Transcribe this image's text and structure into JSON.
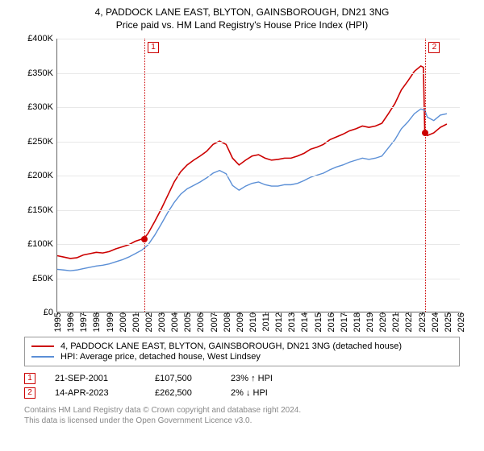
{
  "title": {
    "line1": "4, PADDOCK LANE EAST, BLYTON, GAINSBOROUGH, DN21 3NG",
    "line2": "Price paid vs. HM Land Registry's House Price Index (HPI)"
  },
  "chart": {
    "type": "line",
    "background_color": "#ffffff",
    "grid_color": "#e8e8e8",
    "axis_color": "#666666",
    "label_fontsize": 11,
    "ylim": [
      0,
      400000
    ],
    "ytick_step": 50000,
    "yticks": [
      {
        "v": 0,
        "label": "£0"
      },
      {
        "v": 50000,
        "label": "£50K"
      },
      {
        "v": 100000,
        "label": "£100K"
      },
      {
        "v": 150000,
        "label": "£150K"
      },
      {
        "v": 200000,
        "label": "£200K"
      },
      {
        "v": 250000,
        "label": "£250K"
      },
      {
        "v": 300000,
        "label": "£300K"
      },
      {
        "v": 350000,
        "label": "£350K"
      },
      {
        "v": 400000,
        "label": "£400K"
      }
    ],
    "xlim": [
      1995,
      2026
    ],
    "xticks": [
      1995,
      1996,
      1997,
      1998,
      1999,
      2000,
      2001,
      2002,
      2003,
      2004,
      2005,
      2006,
      2007,
      2008,
      2009,
      2010,
      2011,
      2012,
      2013,
      2014,
      2015,
      2016,
      2017,
      2018,
      2019,
      2020,
      2021,
      2022,
      2023,
      2024,
      2025,
      2026
    ],
    "series": [
      {
        "name": "property",
        "label": "4, PADDOCK LANE EAST, BLYTON, GAINSBOROUGH, DN21 3NG (detached house)",
        "color": "#cc0000",
        "line_width": 1.6,
        "data": [
          [
            1995.0,
            82000
          ],
          [
            1995.5,
            80000
          ],
          [
            1996.0,
            78000
          ],
          [
            1996.5,
            79000
          ],
          [
            1997.0,
            83000
          ],
          [
            1997.5,
            85000
          ],
          [
            1998.0,
            87000
          ],
          [
            1998.5,
            86000
          ],
          [
            1999.0,
            88000
          ],
          [
            1999.5,
            92000
          ],
          [
            2000.0,
            95000
          ],
          [
            2000.5,
            98000
          ],
          [
            2001.0,
            103000
          ],
          [
            2001.7,
            107500
          ],
          [
            2002.0,
            115000
          ],
          [
            2002.5,
            132000
          ],
          [
            2003.0,
            150000
          ],
          [
            2003.5,
            170000
          ],
          [
            2004.0,
            190000
          ],
          [
            2004.5,
            205000
          ],
          [
            2005.0,
            215000
          ],
          [
            2005.5,
            222000
          ],
          [
            2006.0,
            228000
          ],
          [
            2006.5,
            235000
          ],
          [
            2007.0,
            245000
          ],
          [
            2007.5,
            250000
          ],
          [
            2008.0,
            245000
          ],
          [
            2008.5,
            225000
          ],
          [
            2009.0,
            215000
          ],
          [
            2009.5,
            222000
          ],
          [
            2010.0,
            228000
          ],
          [
            2010.5,
            230000
          ],
          [
            2011.0,
            225000
          ],
          [
            2011.5,
            222000
          ],
          [
            2012.0,
            223000
          ],
          [
            2012.5,
            225000
          ],
          [
            2013.0,
            225000
          ],
          [
            2013.5,
            228000
          ],
          [
            2014.0,
            232000
          ],
          [
            2014.5,
            238000
          ],
          [
            2015.0,
            241000
          ],
          [
            2015.5,
            245000
          ],
          [
            2016.0,
            252000
          ],
          [
            2016.5,
            256000
          ],
          [
            2017.0,
            260000
          ],
          [
            2017.5,
            265000
          ],
          [
            2018.0,
            268000
          ],
          [
            2018.5,
            272000
          ],
          [
            2019.0,
            270000
          ],
          [
            2019.5,
            272000
          ],
          [
            2020.0,
            276000
          ],
          [
            2020.5,
            290000
          ],
          [
            2021.0,
            305000
          ],
          [
            2021.5,
            325000
          ],
          [
            2022.0,
            338000
          ],
          [
            2022.5,
            352000
          ],
          [
            2023.0,
            360000
          ],
          [
            2023.2,
            358000
          ],
          [
            2023.3,
            262500
          ],
          [
            2023.5,
            258000
          ],
          [
            2024.0,
            262000
          ],
          [
            2024.5,
            270000
          ],
          [
            2025.0,
            275000
          ]
        ]
      },
      {
        "name": "hpi",
        "label": "HPI: Average price, detached house, West Lindsey",
        "color": "#5b8fd6",
        "line_width": 1.4,
        "data": [
          [
            1995.0,
            62000
          ],
          [
            1995.5,
            61000
          ],
          [
            1996.0,
            60000
          ],
          [
            1996.5,
            61000
          ],
          [
            1997.0,
            63000
          ],
          [
            1997.5,
            65000
          ],
          [
            1998.0,
            67000
          ],
          [
            1998.5,
            68000
          ],
          [
            1999.0,
            70000
          ],
          [
            1999.5,
            73000
          ],
          [
            2000.0,
            76000
          ],
          [
            2000.5,
            80000
          ],
          [
            2001.0,
            85000
          ],
          [
            2001.5,
            90000
          ],
          [
            2002.0,
            98000
          ],
          [
            2002.5,
            112000
          ],
          [
            2003.0,
            128000
          ],
          [
            2003.5,
            145000
          ],
          [
            2004.0,
            160000
          ],
          [
            2004.5,
            172000
          ],
          [
            2005.0,
            180000
          ],
          [
            2005.5,
            185000
          ],
          [
            2006.0,
            190000
          ],
          [
            2006.5,
            196000
          ],
          [
            2007.0,
            203000
          ],
          [
            2007.5,
            207000
          ],
          [
            2008.0,
            202000
          ],
          [
            2008.5,
            185000
          ],
          [
            2009.0,
            178000
          ],
          [
            2009.5,
            184000
          ],
          [
            2010.0,
            188000
          ],
          [
            2010.5,
            190000
          ],
          [
            2011.0,
            186000
          ],
          [
            2011.5,
            184000
          ],
          [
            2012.0,
            184000
          ],
          [
            2012.5,
            186000
          ],
          [
            2013.0,
            186000
          ],
          [
            2013.5,
            188000
          ],
          [
            2014.0,
            192000
          ],
          [
            2014.5,
            197000
          ],
          [
            2015.0,
            200000
          ],
          [
            2015.5,
            203000
          ],
          [
            2016.0,
            208000
          ],
          [
            2016.5,
            212000
          ],
          [
            2017.0,
            215000
          ],
          [
            2017.5,
            219000
          ],
          [
            2018.0,
            222000
          ],
          [
            2018.5,
            225000
          ],
          [
            2019.0,
            223000
          ],
          [
            2019.5,
            225000
          ],
          [
            2020.0,
            228000
          ],
          [
            2020.5,
            240000
          ],
          [
            2021.0,
            252000
          ],
          [
            2021.5,
            268000
          ],
          [
            2022.0,
            278000
          ],
          [
            2022.5,
            290000
          ],
          [
            2023.0,
            297000
          ],
          [
            2023.3,
            295000
          ],
          [
            2023.5,
            285000
          ],
          [
            2024.0,
            280000
          ],
          [
            2024.5,
            288000
          ],
          [
            2025.0,
            290000
          ]
        ]
      }
    ],
    "sale_markers": [
      {
        "n": "1",
        "year": 2001.7,
        "value": 107500,
        "dash_color": "#cc0000"
      },
      {
        "n": "2",
        "year": 2023.3,
        "value": 262500,
        "dash_color": "#cc0000"
      }
    ]
  },
  "legend": {
    "items": [
      {
        "color": "#cc0000",
        "text": "4, PADDOCK LANE EAST, BLYTON, GAINSBOROUGH, DN21 3NG (detached house)"
      },
      {
        "color": "#5b8fd6",
        "text": "HPI: Average price, detached house, West Lindsey"
      }
    ]
  },
  "sales": [
    {
      "n": "1",
      "date": "21-SEP-2001",
      "price": "£107,500",
      "delta": "23% ↑ HPI"
    },
    {
      "n": "2",
      "date": "14-APR-2023",
      "price": "£262,500",
      "delta": "2% ↓ HPI"
    }
  ],
  "footer": {
    "line1": "Contains HM Land Registry data © Crown copyright and database right 2024.",
    "line2": "This data is licensed under the Open Government Licence v3.0."
  }
}
